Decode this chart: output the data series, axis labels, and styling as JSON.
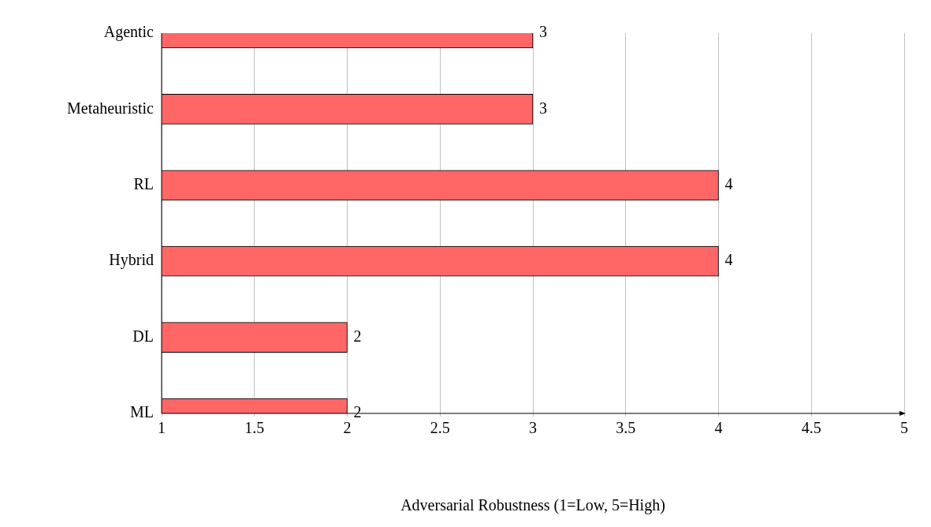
{
  "chart_data": {
    "type": "bar",
    "orientation": "horizontal",
    "xlabel": "Adversarial Robustness (1=Low, 5=High)",
    "categories": [
      "Agentic",
      "Metaheuristic",
      "RL",
      "Hybrid",
      "DL",
      "ML"
    ],
    "values": [
      3,
      3,
      4,
      4,
      2,
      2
    ],
    "color": "#ff6666",
    "xlim": [
      1,
      5
    ],
    "xticks": [
      1,
      1.5,
      2,
      2.5,
      3,
      3.5,
      4,
      4.5,
      5
    ],
    "grid": "x",
    "data_labels": true,
    "legend": false
  }
}
